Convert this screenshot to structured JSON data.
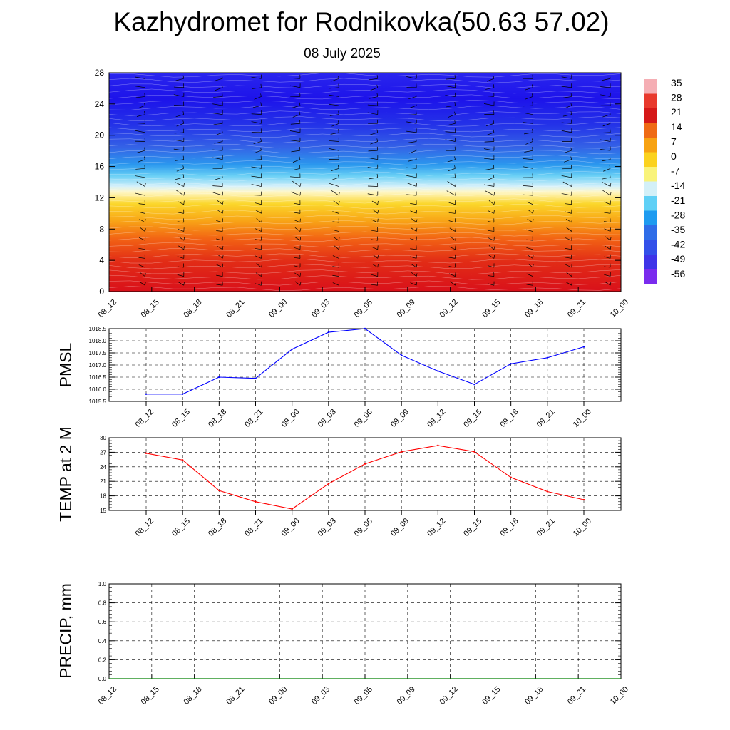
{
  "title": "Kazhydromet for Rodnikovka(50.63 57.02)",
  "subtitle": "08 July 2025",
  "time_labels": [
    "08_12",
    "08_15",
    "08_18",
    "08_21",
    "09_00",
    "09_03",
    "09_06",
    "09_09",
    "09_12",
    "09_15",
    "09_18",
    "09_21",
    "10_00"
  ],
  "chart_data": [
    {
      "type": "heatmap",
      "x": [
        "08_12",
        "08_15",
        "08_18",
        "08_21",
        "09_00",
        "09_03",
        "09_06",
        "09_09",
        "09_12",
        "09_15",
        "09_18",
        "09_21",
        "10_00"
      ],
      "yticks": [
        0,
        4,
        8,
        12,
        16,
        20,
        24,
        28
      ],
      "ylim": [
        0,
        28
      ],
      "colorbar": {
        "labels": [
          "35",
          "28",
          "21",
          "14",
          "7",
          "0",
          "-7",
          "-14",
          "-21",
          "-28",
          "-35",
          "-42",
          "-49",
          "-56"
        ],
        "colors": [
          "#f5aeb4",
          "#e8392d",
          "#d51818",
          "#ef6a14",
          "#f7a212",
          "#fbd21e",
          "#f9f37a",
          "#d3f0f8",
          "#5fd0f6",
          "#1e9bf0",
          "#2f6de8",
          "#3350e9",
          "#3f34e8",
          "#7a2bee"
        ]
      },
      "level_freezing_km": [
        12.6,
        12.8,
        13.0,
        13.1,
        13.1,
        13.2,
        13.3,
        13.3,
        13.4,
        13.5,
        13.5,
        13.5,
        13.6
      ],
      "wind_barbs": true
    },
    {
      "type": "line",
      "ylabel": "PMSL",
      "x": [
        "08_12",
        "08_15",
        "08_18",
        "08_21",
        "09_00",
        "09_03",
        "09_06",
        "09_09",
        "09_12",
        "09_15",
        "09_18",
        "09_21",
        "10_00"
      ],
      "series": [
        {
          "values": [
            1015.8,
            1015.8,
            1016.5,
            1016.45,
            1017.65,
            1018.35,
            1018.5,
            1017.4,
            1016.75,
            1016.2,
            1017.05,
            1017.3,
            1017.75
          ],
          "color": "#0000ff"
        }
      ],
      "yticks": [
        "1015.5",
        "1016.0",
        "1016.5",
        "1017.0",
        "1017.5",
        "1018.0",
        "1018.5"
      ],
      "ylim": [
        1015.5,
        1018.5
      ]
    },
    {
      "type": "line",
      "ylabel": "TEMP at 2 M",
      "x": [
        "08_12",
        "08_15",
        "08_18",
        "08_21",
        "09_00",
        "09_03",
        "09_06",
        "09_09",
        "09_12",
        "09_15",
        "09_18",
        "09_21",
        "10_00"
      ],
      "series": [
        {
          "values": [
            26.8,
            25.4,
            19.1,
            16.8,
            15.3,
            20.5,
            24.6,
            27.1,
            28.4,
            27.1,
            21.8,
            18.9,
            17.2
          ],
          "color": "#ff0000"
        }
      ],
      "yticks": [
        "15",
        "18",
        "21",
        "24",
        "27",
        "30"
      ],
      "ylim": [
        15,
        30
      ]
    },
    {
      "type": "line",
      "ylabel": "PRECIP, mm",
      "x": [
        "08_12",
        "08_15",
        "08_18",
        "08_21",
        "09_00",
        "09_03",
        "09_06",
        "09_09",
        "09_12",
        "09_15",
        "09_18",
        "09_21",
        "10_00"
      ],
      "series": [
        {
          "values": [
            0,
            0,
            0,
            0,
            0,
            0,
            0,
            0,
            0,
            0,
            0,
            0,
            0
          ],
          "color": "#008000"
        }
      ],
      "yticks": [
        "0.0",
        "0.2",
        "0.4",
        "0.6",
        "0.8",
        "1.0"
      ],
      "ylim": [
        0,
        1.0
      ]
    }
  ]
}
